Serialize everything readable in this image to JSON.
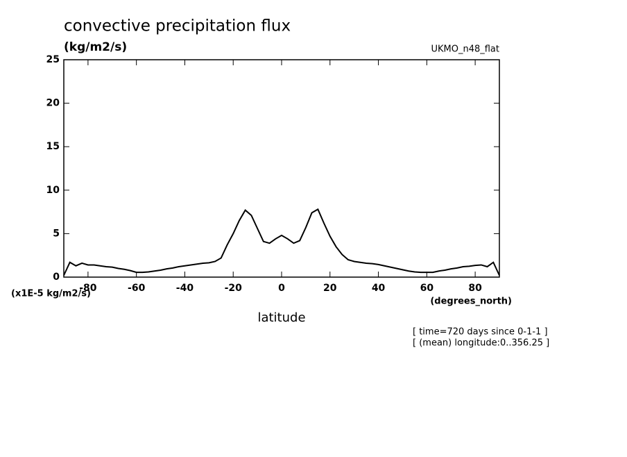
{
  "chart_data": {
    "type": "line",
    "title": "convective precipitation flux",
    "subtitle": "(kg/m2/s)",
    "model_label": "UKMO_n48_flat",
    "y_unit_label": "(x1E-5 kg/m2/s)",
    "x_unit_label": "(degrees_north)",
    "xlabel": "latitude",
    "annotations": [
      "[ time=720 days since 0-1-1 ]",
      "[ (mean) longitude:0..356.25 ]"
    ],
    "xlim": [
      -90,
      90
    ],
    "ylim": [
      0,
      25
    ],
    "xticks": [
      -80,
      -60,
      -40,
      -20,
      0,
      20,
      40,
      60,
      80
    ],
    "yticks": [
      0,
      5,
      10,
      15,
      20,
      25
    ],
    "color": "#000000",
    "x": [
      -90,
      -87.5,
      -85,
      -82.5,
      -80,
      -77.5,
      -75,
      -72.5,
      -70,
      -67.5,
      -65,
      -62.5,
      -60,
      -57.5,
      -55,
      -52.5,
      -50,
      -47.5,
      -45,
      -42.5,
      -40,
      -37.5,
      -35,
      -32.5,
      -30,
      -27.5,
      -25,
      -22.5,
      -20,
      -17.5,
      -15,
      -12.5,
      -10,
      -7.5,
      -5,
      -2.5,
      0,
      2.5,
      5,
      7.5,
      10,
      12.5,
      15,
      17.5,
      20,
      22.5,
      25,
      27.5,
      30,
      32.5,
      35,
      37.5,
      40,
      42.5,
      45,
      47.5,
      50,
      52.5,
      55,
      57.5,
      60,
      62.5,
      65,
      67.5,
      70,
      72.5,
      75,
      77.5,
      80,
      82.5,
      85,
      87.5,
      90
    ],
    "values": [
      0.2,
      1.7,
      1.3,
      1.6,
      1.4,
      1.4,
      1.3,
      1.2,
      1.15,
      1.0,
      0.9,
      0.75,
      0.55,
      0.55,
      0.6,
      0.7,
      0.8,
      0.95,
      1.05,
      1.2,
      1.3,
      1.4,
      1.5,
      1.6,
      1.65,
      1.8,
      2.2,
      3.7,
      5.0,
      6.5,
      7.7,
      7.1,
      5.6,
      4.1,
      3.9,
      4.4,
      4.8,
      4.4,
      3.9,
      4.2,
      5.7,
      7.4,
      7.8,
      6.2,
      4.7,
      3.5,
      2.6,
      2.0,
      1.8,
      1.7,
      1.6,
      1.55,
      1.45,
      1.3,
      1.15,
      1.0,
      0.85,
      0.7,
      0.6,
      0.55,
      0.55,
      0.55,
      0.7,
      0.8,
      0.95,
      1.05,
      1.2,
      1.25,
      1.35,
      1.4,
      1.2,
      1.7,
      0.2
    ]
  }
}
